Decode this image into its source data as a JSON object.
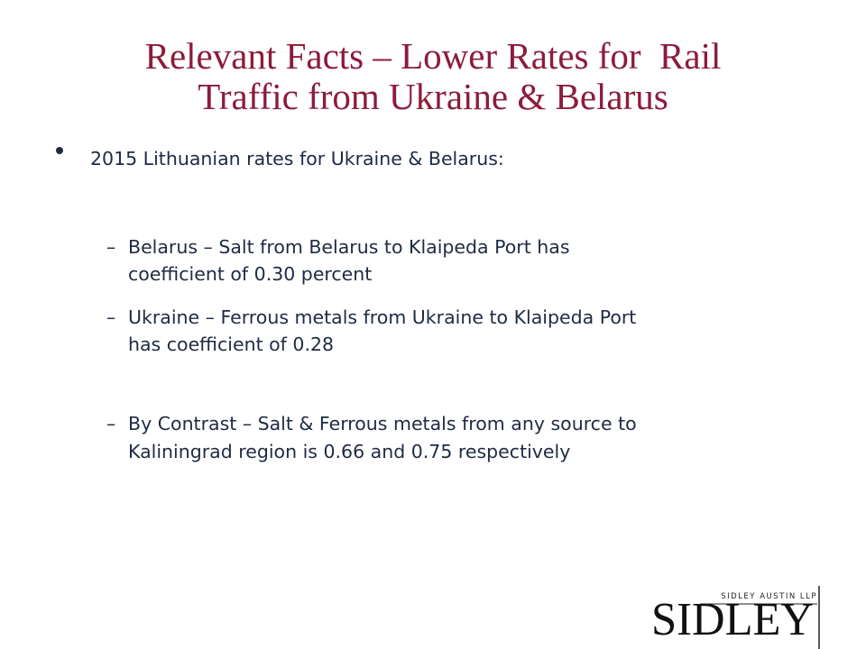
{
  "title": {
    "lines": [
      "Relevant Facts – Lower Rates for  Rail",
      "Traffic from Ukraine & Belarus"
    ]
  },
  "bullet": {
    "text": "2015 Lithuanian rates for Ukraine & Belarus:",
    "items": [
      {
        "lines": [
          "Belarus – Salt from Belarus to Klaipeda Port has",
          "coefficient of 0.30 percent"
        ]
      },
      {
        "lines": [
          "Ukraine – Ferrous metals from Ukraine to Klaipeda Port",
          "has coefficient of 0.28"
        ]
      },
      {
        "lines": [
          "By Contrast – Salt & Ferrous metals from any source to",
          "Kaliningrad region is 0.66 and 0.75 respectively"
        ]
      }
    ]
  },
  "logo": {
    "firm": "SIDLEY AUSTIN LLP",
    "mark": "SIDLEY"
  }
}
